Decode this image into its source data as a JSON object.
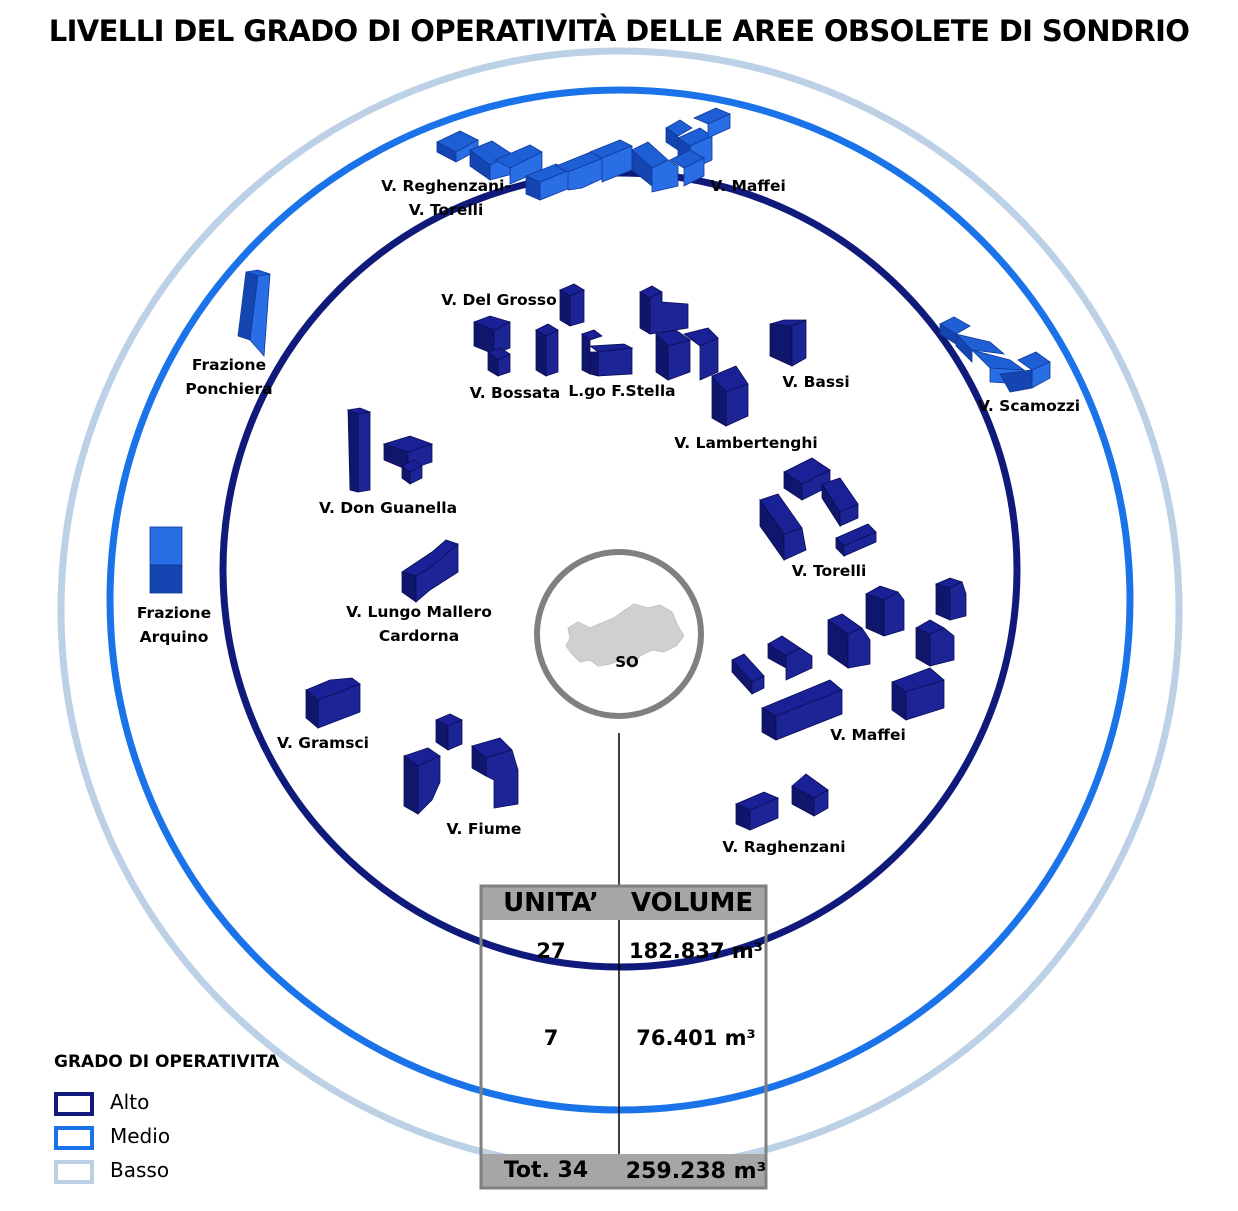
{
  "title": "LIVELLI DEL GRADO DI OPERATIVITÀ DELLE AREE OBSOLETE DI SONDRIO",
  "center_label": "SO",
  "colors": {
    "alto": "#0f1a7a",
    "medio": "#1a73e8",
    "basso": "#bcd0e6",
    "building_alto": "#131a82",
    "building_medio": "#1f5fd6",
    "center_ring": "#808080",
    "map": "#d0d0d0"
  },
  "labels": {
    "reghenzani_torelli": [
      "V. Reghenzani-",
      "V. Torelli"
    ],
    "maffei_top": [
      "V. Maffei"
    ],
    "del_grosso": [
      "V. Del Grosso"
    ],
    "bossata": [
      "V. Bossata"
    ],
    "stella": [
      "L.go F.Stella"
    ],
    "bassi": [
      "V. Bassi"
    ],
    "lambertenghi": [
      "V. Lambertenghi"
    ],
    "scamozzi": [
      "V. Scamozzi"
    ],
    "ponchiera": [
      "Frazione",
      "Ponchiera"
    ],
    "don_guanella": [
      "V. Don Guanella"
    ],
    "torelli": [
      "V. Torelli"
    ],
    "arquino": [
      "Frazione",
      "Arquino"
    ],
    "lungo_mallero": [
      "V. Lungo Mallero",
      "Cardorna"
    ],
    "gramsci": [
      "V. Gramsci"
    ],
    "maffei": [
      "V. Maffei"
    ],
    "fiume": [
      "V. Fiume"
    ],
    "raghenzani": [
      "V. Raghenzani"
    ]
  },
  "table": {
    "headers": [
      "UNITA’",
      "VOLUME"
    ],
    "rows": [
      {
        "units": "27",
        "volume": "182.837 m³"
      },
      {
        "units": "7",
        "volume": "76.401 m³"
      }
    ],
    "total": {
      "units": "Tot. 34",
      "volume": "259.238 m³"
    }
  },
  "legend": {
    "title": "GRADO DI OPERATIVITA",
    "items": [
      {
        "label": "Alto",
        "color": "#0f1a7a"
      },
      {
        "label": "Medio",
        "color": "#1a73e8"
      },
      {
        "label": "Basso",
        "color": "#bcd0e6"
      }
    ]
  }
}
